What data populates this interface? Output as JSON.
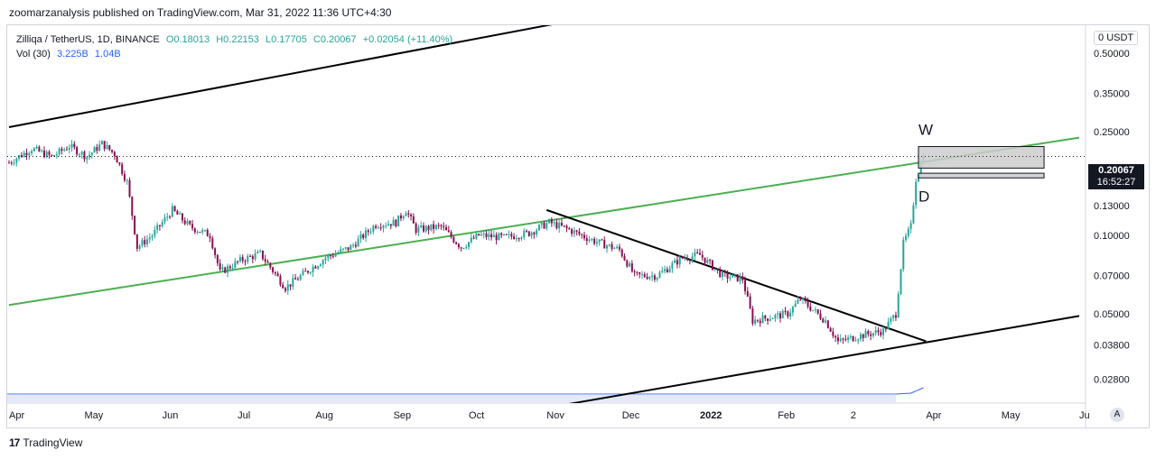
{
  "header": {
    "publish_line": "zoomarzanalysis published on TradingView.com, Mar 31, 2022 11:36 UTC+4:30"
  },
  "legend": {
    "symbol": "Zilliqa / TetherUS, 1D, BINANCE",
    "open": "O0.18013",
    "high": "H0.22153",
    "low": "L0.17705",
    "close": "C0.20067",
    "change": "+0.02054 (+11.40%)",
    "volume_label": "Vol (30)",
    "volume_a": "3.225B",
    "volume_b": "1.04B"
  },
  "price_axis": {
    "currency": "USDT",
    "currency_prefix": "0",
    "last_price": "0.20067",
    "countdown": "16:52:27",
    "auto_label": "A"
  },
  "annotations": {
    "w_label": "W",
    "d_label": "D"
  },
  "footer": {
    "brand": "TradingView",
    "logo": "17"
  },
  "colors": {
    "up": "#26a69a",
    "down": "#880e4f",
    "green_line": "#4caf50",
    "trend_line": "#000000",
    "volume_line": "#2962ff",
    "zone_fill": "#cccccc"
  },
  "chart_data": {
    "type": "candlestick",
    "scale": "log",
    "title": "",
    "xlabel": "",
    "ylabel": "",
    "ylim": [
      0.024,
      0.6
    ],
    "y_ticks": [
      {
        "label": "0.50000",
        "value": 0.5
      },
      {
        "label": "0.35000",
        "value": 0.35
      },
      {
        "label": "0.25000",
        "value": 0.25
      },
      {
        "label": "0.13000",
        "value": 0.13
      },
      {
        "label": "0.10000",
        "value": 0.1
      },
      {
        "label": "0.07000",
        "value": 0.07
      },
      {
        "label": "0.05000",
        "value": 0.05
      },
      {
        "label": "0.03800",
        "value": 0.038
      },
      {
        "label": "0.02800",
        "value": 0.028
      }
    ],
    "x_ticks": [
      {
        "label": "Apr",
        "value": "2021-04-01"
      },
      {
        "label": "May",
        "value": "2021-05-01"
      },
      {
        "label": "Jun",
        "value": "2021-06-01"
      },
      {
        "label": "Jul",
        "value": "2021-07-01"
      },
      {
        "label": "Aug",
        "value": "2021-08-01"
      },
      {
        "label": "Sep",
        "value": "2021-09-01"
      },
      {
        "label": "Oct",
        "value": "2021-10-01"
      },
      {
        "label": "Nov",
        "value": "2021-11-01"
      },
      {
        "label": "Dec",
        "value": "2021-12-01"
      },
      {
        "label": "2022",
        "value": "2022-01-01",
        "bold": true
      },
      {
        "label": "Feb",
        "value": "2022-02-01"
      },
      {
        "label": "2",
        "value": "2022-03-02"
      },
      {
        "label": "Apr",
        "value": "2022-04-01"
      },
      {
        "label": "May",
        "value": "2022-05-01"
      },
      {
        "label": "Ju",
        "value": "2022-06-01"
      }
    ],
    "x_range": [
      "2021-04-01",
      "2022-06-01"
    ],
    "path_points": [
      {
        "date": "2021-04-01",
        "value": 0.19
      },
      {
        "date": "2021-04-10",
        "value": 0.215
      },
      {
        "date": "2021-04-18",
        "value": 0.2
      },
      {
        "date": "2021-04-25",
        "value": 0.22
      },
      {
        "date": "2021-05-02",
        "value": 0.2
      },
      {
        "date": "2021-05-08",
        "value": 0.225
      },
      {
        "date": "2021-05-13",
        "value": 0.205
      },
      {
        "date": "2021-05-18",
        "value": 0.16
      },
      {
        "date": "2021-05-22",
        "value": 0.09
      },
      {
        "date": "2021-05-28",
        "value": 0.1
      },
      {
        "date": "2021-06-05",
        "value": 0.125
      },
      {
        "date": "2021-06-12",
        "value": 0.108
      },
      {
        "date": "2021-06-20",
        "value": 0.1
      },
      {
        "date": "2021-06-24",
        "value": 0.072
      },
      {
        "date": "2021-07-02",
        "value": 0.08
      },
      {
        "date": "2021-07-10",
        "value": 0.085
      },
      {
        "date": "2021-07-20",
        "value": 0.063
      },
      {
        "date": "2021-07-28",
        "value": 0.072
      },
      {
        "date": "2021-08-05",
        "value": 0.082
      },
      {
        "date": "2021-08-15",
        "value": 0.09
      },
      {
        "date": "2021-08-25",
        "value": 0.11
      },
      {
        "date": "2021-09-02",
        "value": 0.112
      },
      {
        "date": "2021-09-06",
        "value": 0.125
      },
      {
        "date": "2021-09-10",
        "value": 0.105
      },
      {
        "date": "2021-09-20",
        "value": 0.108
      },
      {
        "date": "2021-09-28",
        "value": 0.09
      },
      {
        "date": "2021-10-05",
        "value": 0.1
      },
      {
        "date": "2021-10-15",
        "value": 0.098
      },
      {
        "date": "2021-10-25",
        "value": 0.102
      },
      {
        "date": "2021-11-02",
        "value": 0.112
      },
      {
        "date": "2021-11-10",
        "value": 0.105
      },
      {
        "date": "2021-11-20",
        "value": 0.095
      },
      {
        "date": "2021-11-30",
        "value": 0.088
      },
      {
        "date": "2021-12-06",
        "value": 0.07
      },
      {
        "date": "2021-12-15",
        "value": 0.07
      },
      {
        "date": "2021-12-25",
        "value": 0.082
      },
      {
        "date": "2022-01-01",
        "value": 0.084
      },
      {
        "date": "2022-01-10",
        "value": 0.07
      },
      {
        "date": "2022-01-18",
        "value": 0.068
      },
      {
        "date": "2022-01-22",
        "value": 0.047
      },
      {
        "date": "2022-02-05",
        "value": 0.05
      },
      {
        "date": "2022-02-10",
        "value": 0.057
      },
      {
        "date": "2022-02-20",
        "value": 0.047
      },
      {
        "date": "2022-02-25",
        "value": 0.039
      },
      {
        "date": "2022-03-05",
        "value": 0.041
      },
      {
        "date": "2022-03-15",
        "value": 0.043
      },
      {
        "date": "2022-03-20",
        "value": 0.05
      },
      {
        "date": "2022-03-23",
        "value": 0.093
      },
      {
        "date": "2022-03-26",
        "value": 0.108
      },
      {
        "date": "2022-03-28",
        "value": 0.165
      },
      {
        "date": "2022-03-31",
        "value": 0.2007
      }
    ],
    "last_price": 0.20067,
    "trend_lines": [
      {
        "name": "upper-channel-line",
        "color": "#000000",
        "start": {
          "date": "2021-04-01",
          "value": 0.26
        },
        "end": {
          "date": "2022-01-27",
          "value": 0.92
        }
      },
      {
        "name": "lower-channel-line",
        "color": "#000000",
        "start": {
          "date": "2021-10-25",
          "value": 0.0212
        },
        "end": {
          "date": "2022-06-01",
          "value": 0.049
        }
      },
      {
        "name": "green-support-line",
        "color": "#4caf50",
        "start": {
          "date": "2021-04-01",
          "value": 0.054
        },
        "end": {
          "date": "2022-06-01",
          "value": 0.237
        }
      },
      {
        "name": "descending-trend-line",
        "color": "#000000",
        "start": {
          "date": "2021-11-01",
          "value": 0.125
        },
        "end": {
          "date": "2022-04-01",
          "value": 0.0392
        }
      }
    ],
    "zones": [
      {
        "name": "w-zone",
        "label": "W",
        "from_date": "2022-03-29",
        "to_date": "2022-05-18",
        "top": 0.219,
        "bottom": 0.181
      },
      {
        "name": "d-zone",
        "label": "D",
        "from_date": "2022-03-29",
        "to_date": "2022-05-18",
        "top": 0.173,
        "bottom": 0.166
      }
    ],
    "grid": false,
    "legend_position": "top-left"
  }
}
